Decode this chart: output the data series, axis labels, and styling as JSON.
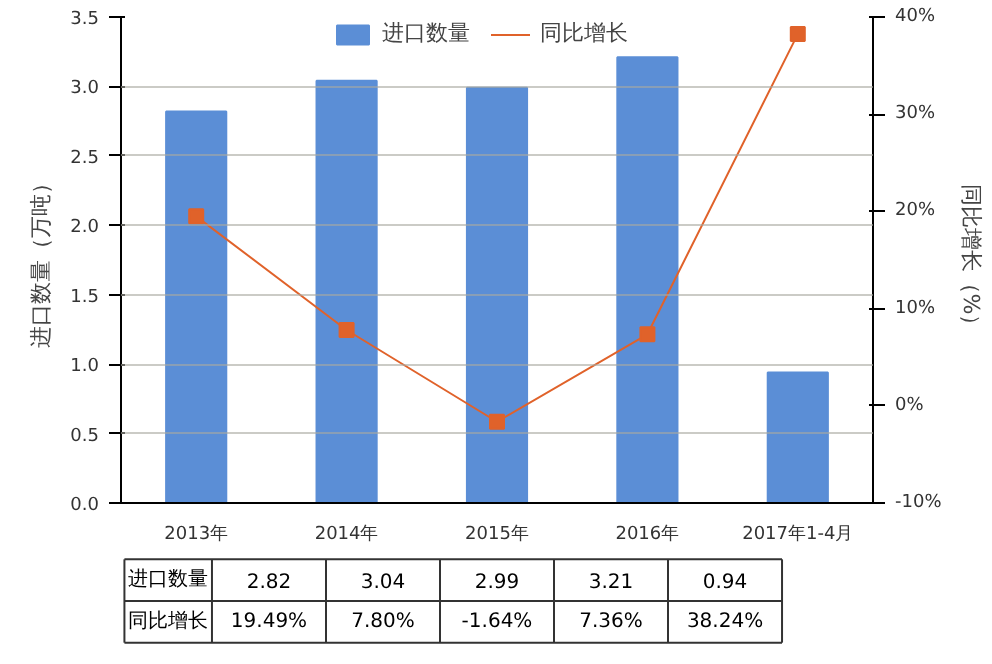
{
  "chart_data": {
    "type": "bar",
    "categories": [
      "2013年",
      "2014年",
      "2015年",
      "2016年",
      "2017年1-4月"
    ],
    "ylabel": "进口数量（万吨）",
    "y2label": "同比增长（%）",
    "ylim": [
      0,
      3.5
    ],
    "yticks": [
      {
        "value": 0,
        "label": "0.0"
      },
      {
        "value": 0.5,
        "label": "0.5"
      },
      {
        "value": 1,
        "label": "1.0"
      },
      {
        "value": 1.5,
        "label": "1.5"
      },
      {
        "value": 2,
        "label": "2.0"
      },
      {
        "value": 2.5,
        "label": "2.5"
      },
      {
        "value": 3,
        "label": "3.0"
      },
      {
        "value": 3.5,
        "label": "3.5"
      }
    ],
    "y2lim": [
      -10,
      40
    ],
    "y2ticks": [
      {
        "value": -10,
        "label": "-10%"
      },
      {
        "value": 0,
        "label": "0%"
      },
      {
        "value": 10,
        "label": "10%"
      },
      {
        "value": 20,
        "label": "20%"
      },
      {
        "value": 30,
        "label": "30%"
      },
      {
        "value": 40,
        "label": "40%"
      }
    ],
    "grid": "y",
    "legend": "top right",
    "data_labels": true,
    "series": [
      {
        "name": "进口数量",
        "type": "bar",
        "color": "#5b8ed6",
        "values": [
          2.82,
          3.04,
          2.99,
          3.21,
          0.94
        ],
        "value_labels": [
          "2.82",
          "3.04",
          "2.99",
          "3.21",
          "0.94"
        ]
      },
      {
        "name": "同比增长",
        "type": "line",
        "axis": "y2",
        "color": "#e0622a",
        "marker": "square",
        "values": [
          19.49,
          7.8,
          -1.64,
          7.36,
          38.24
        ],
        "value_labels": [
          "19.49%",
          "7.80%",
          "-1.64%",
          "7.36%",
          "38.24%"
        ]
      }
    ]
  }
}
